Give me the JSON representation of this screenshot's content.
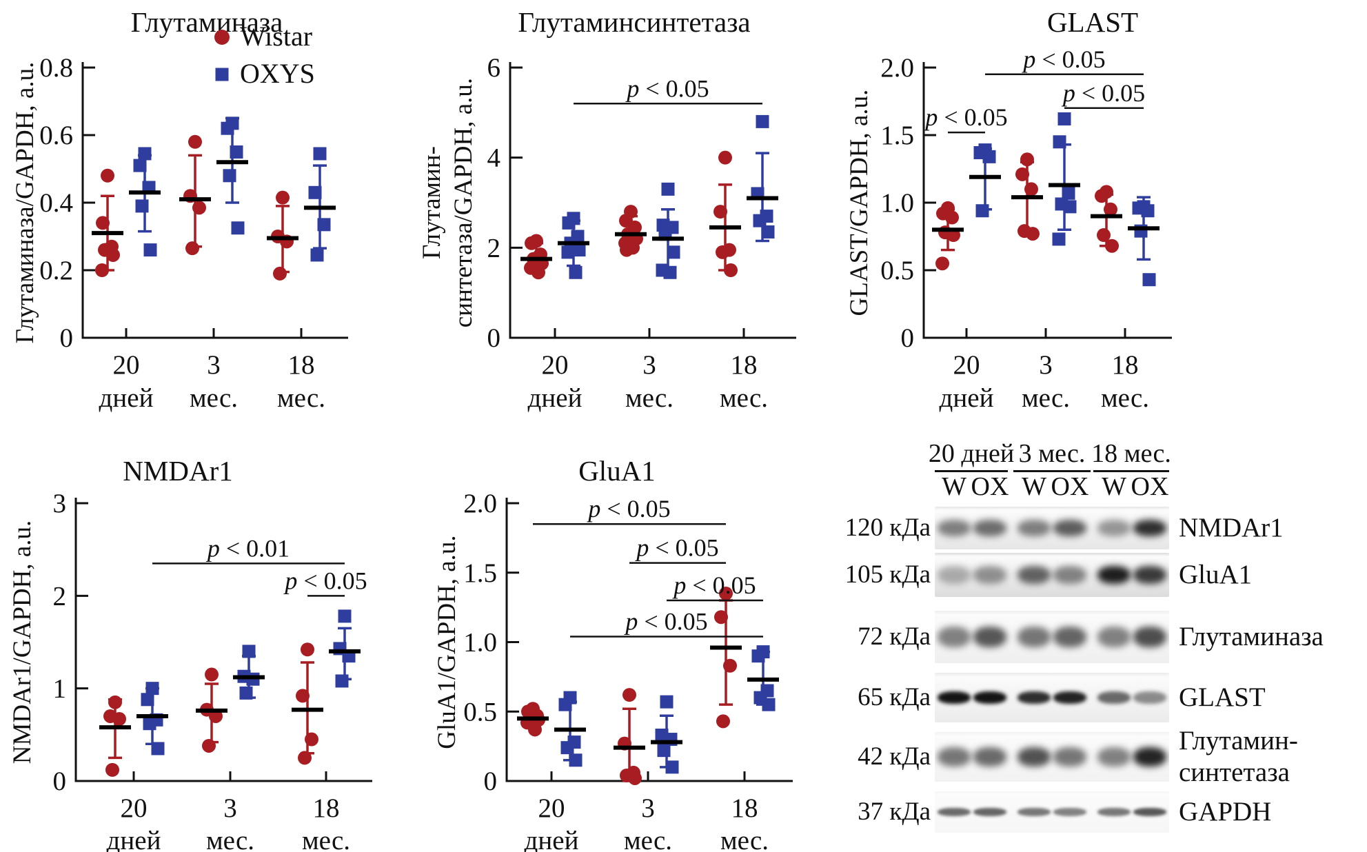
{
  "colors": {
    "wistar": "#A81D22",
    "oxys": "#2F3E9E",
    "axis": "#111111",
    "mean_bar": "#000000"
  },
  "legend": {
    "items": [
      {
        "label": "Wistar",
        "marker": "circle",
        "color_key": "wistar"
      },
      {
        "label": "OXYS",
        "marker": "square",
        "color_key": "oxys"
      }
    ]
  },
  "group_labels": [
    [
      "20",
      "дней"
    ],
    [
      "3",
      "мес."
    ],
    [
      "18",
      "мес."
    ]
  ],
  "chart_data": [
    {
      "id": "glutaminase",
      "type": "scatter",
      "title": "Глутаминаза",
      "ylabel_lines": [
        "Глутаминаза/GAPDH, a.u."
      ],
      "ylim": [
        0,
        0.8
      ],
      "yticks": [
        "0",
        "0.2",
        "0.4",
        "0.6",
        "0.8"
      ],
      "categories": [
        "20 дней",
        "3 мес.",
        "18 мес."
      ],
      "legend_inside": true,
      "series": [
        {
          "name": "Wistar",
          "marker": "circle",
          "data": [
            {
              "points": [
                0.48,
                0.34,
                0.27,
                0.26,
                0.245,
                0.2
              ],
              "mean": 0.31,
              "lo": 0.2,
              "hi": 0.42
            },
            {
              "points": [
                0.58,
                0.42,
                0.385,
                0.265
              ],
              "mean": 0.41,
              "lo": 0.27,
              "hi": 0.54
            },
            {
              "points": [
                0.415,
                0.3,
                0.285,
                0.19
              ],
              "mean": 0.295,
              "lo": 0.195,
              "hi": 0.39
            }
          ]
        },
        {
          "name": "OXYS",
          "marker": "square",
          "data": [
            {
              "points": [
                0.545,
                0.51,
                0.445,
                0.39,
                0.26
              ],
              "mean": 0.43,
              "lo": 0.315,
              "hi": 0.54
            },
            {
              "points": [
                0.635,
                0.62,
                0.55,
                0.48,
                0.325
              ],
              "mean": 0.52,
              "lo": 0.4,
              "hi": 0.65
            },
            {
              "points": [
                0.545,
                0.43,
                0.335,
                0.245
              ],
              "mean": 0.385,
              "lo": 0.265,
              "hi": 0.51
            }
          ]
        }
      ],
      "brackets": []
    },
    {
      "id": "glutamine-synthetase",
      "type": "scatter",
      "title": "Глутаминсинтетаза",
      "ylabel_lines": [
        "Глутамин-",
        "синтетаза/GAPDH, a.u."
      ],
      "ylim": [
        0,
        6
      ],
      "yticks": [
        "0",
        "2",
        "4",
        "6"
      ],
      "categories": [
        "20 дней",
        "3 мес.",
        "18 мес."
      ],
      "legend_inside": false,
      "series": [
        {
          "name": "Wistar",
          "marker": "circle",
          "data": [
            {
              "points": [
                2.15,
                2.1,
                1.85,
                1.75,
                1.65,
                1.55,
                1.45
              ],
              "mean": 1.75,
              "lo": 1.5,
              "hi": 2.1
            },
            {
              "points": [
                2.8,
                2.6,
                2.45,
                2.3,
                2.2,
                2.1,
                2.0,
                1.95
              ],
              "mean": 2.3,
              "lo": 1.95,
              "hi": 2.7
            },
            {
              "points": [
                4.0,
                2.8,
                1.95,
                1.9,
                1.5
              ],
              "mean": 2.45,
              "lo": 1.5,
              "hi": 3.4
            }
          ]
        },
        {
          "name": "OXYS",
          "marker": "square",
          "data": [
            {
              "points": [
                2.65,
                2.55,
                2.25,
                2.1,
                1.95,
                1.9,
                1.45
              ],
              "mean": 2.1,
              "lo": 1.6,
              "hi": 2.6
            },
            {
              "points": [
                3.3,
                2.5,
                2.45,
                2.3,
                1.9,
                1.5,
                1.45
              ],
              "mean": 2.2,
              "lo": 1.5,
              "hi": 2.85
            },
            {
              "points": [
                4.8,
                3.2,
                2.7,
                2.6,
                2.35
              ],
              "mean": 3.1,
              "lo": 2.15,
              "hi": 4.1
            }
          ]
        }
      ],
      "brackets": [
        {
          "label": "p < 0.05",
          "from": [
            1,
            0
          ],
          "to": [
            1,
            2
          ],
          "y": 5.2
        }
      ]
    },
    {
      "id": "glast",
      "type": "scatter",
      "title": "GLAST",
      "ylabel_lines": [
        "GLAST/GAPDH, a.u."
      ],
      "ylim": [
        0,
        2
      ],
      "yticks": [
        "0",
        "0.5",
        "1.0",
        "1.5",
        "2.0"
      ],
      "categories": [
        "20 дней",
        "3 мес.",
        "18 мес."
      ],
      "legend_inside": false,
      "series": [
        {
          "name": "Wistar",
          "marker": "circle",
          "data": [
            {
              "points": [
                0.96,
                0.92,
                0.89,
                0.78,
                0.76,
                0.55
              ],
              "mean": 0.8,
              "lo": 0.65,
              "hi": 0.95
            },
            {
              "points": [
                1.32,
                1.21,
                1.1,
                0.79,
                0.77
              ],
              "mean": 1.04,
              "lo": 0.77,
              "hi": 1.3
            },
            {
              "points": [
                1.08,
                1.05,
                0.95,
                0.76,
                0.68
              ],
              "mean": 0.9,
              "lo": 0.68,
              "hi": 1.06
            }
          ]
        },
        {
          "name": "OXYS",
          "marker": "square",
          "data": [
            {
              "points": [
                1.39,
                1.37,
                1.34,
                0.94
              ],
              "mean": 1.19,
              "lo": 0.95,
              "hi": 1.4
            },
            {
              "points": [
                1.62,
                1.45,
                1.07,
                0.99,
                0.97,
                0.73
              ],
              "mean": 1.13,
              "lo": 0.8,
              "hi": 1.43
            },
            {
              "points": [
                0.97,
                0.96,
                0.94,
                0.79,
                0.43
              ],
              "mean": 0.81,
              "lo": 0.58,
              "hi": 1.04
            }
          ]
        }
      ],
      "brackets": [
        {
          "label": "p < 0.05",
          "from": [
            1,
            0
          ],
          "to": [
            1,
            2
          ],
          "y": 1.95
        },
        {
          "label": "p < 0.05",
          "from": [
            1,
            1
          ],
          "to": [
            1,
            2
          ],
          "y": 1.7
        },
        {
          "label": "p < 0.05",
          "from": [
            0,
            0
          ],
          "to": [
            1,
            0
          ],
          "y": 1.52
        }
      ]
    },
    {
      "id": "nmdar1",
      "type": "scatter",
      "title": "NMDAr1",
      "ylabel_lines": [
        "NMDAr1/GAPDH, a.u."
      ],
      "ylim": [
        0,
        3
      ],
      "yticks": [
        "0",
        "1",
        "2",
        "3"
      ],
      "categories": [
        "20 дней",
        "3 мес.",
        "18 мес."
      ],
      "legend_inside": false,
      "series": [
        {
          "name": "Wistar",
          "marker": "circle",
          "data": [
            {
              "points": [
                0.85,
                0.7,
                0.67,
                0.12
              ],
              "mean": 0.58,
              "lo": 0.25,
              "hi": 0.88
            },
            {
              "points": [
                1.15,
                0.77,
                0.7,
                0.38
              ],
              "mean": 0.76,
              "lo": 0.42,
              "hi": 1.05
            },
            {
              "points": [
                1.42,
                0.92,
                0.45,
                0.25
              ],
              "mean": 0.77,
              "lo": 0.3,
              "hi": 1.28
            }
          ]
        },
        {
          "name": "OXYS",
          "marker": "square",
          "data": [
            {
              "points": [
                1.0,
                0.88,
                0.66,
                0.62,
                0.35
              ],
              "mean": 0.7,
              "lo": 0.4,
              "hi": 1.0
            },
            {
              "points": [
                1.4,
                1.13,
                1.1,
                0.95
              ],
              "mean": 1.12,
              "lo": 0.9,
              "hi": 1.35
            },
            {
              "points": [
                1.78,
                1.43,
                1.35,
                1.08
              ],
              "mean": 1.4,
              "lo": 1.1,
              "hi": 1.65
            }
          ]
        }
      ],
      "brackets": [
        {
          "label": "p < 0.01",
          "from": [
            1,
            0
          ],
          "to": [
            1,
            2
          ],
          "y": 2.35
        },
        {
          "label": "p < 0.05",
          "from": [
            0,
            2
          ],
          "to": [
            1,
            2
          ],
          "y": 2.0
        }
      ]
    },
    {
      "id": "glua1",
      "type": "scatter",
      "title": "GluA1",
      "ylabel_lines": [
        "GluA1/GAPDH, a.u."
      ],
      "ylim": [
        0,
        2
      ],
      "yticks": [
        "0",
        "0.5",
        "1.0",
        "1.5",
        "2.0"
      ],
      "categories": [
        "20 дней",
        "3 мес.",
        "18 мес."
      ],
      "legend_inside": false,
      "series": [
        {
          "name": "Wistar",
          "marker": "circle",
          "data": [
            {
              "points": [
                0.52,
                0.5,
                0.47,
                0.45,
                0.44,
                0.42,
                0.37
              ],
              "mean": 0.45,
              "lo": 0.4,
              "hi": 0.5
            },
            {
              "points": [
                0.62,
                0.27,
                0.06,
                0.04,
                0.02
              ],
              "mean": 0.24,
              "lo": 0.0,
              "hi": 0.52
            },
            {
              "points": [
                1.35,
                1.18,
                0.83,
                0.43
              ],
              "mean": 0.96,
              "lo": 0.55,
              "hi": 1.3
            }
          ]
        },
        {
          "name": "OXYS",
          "marker": "square",
          "data": [
            {
              "points": [
                0.6,
                0.55,
                0.28,
                0.24,
                0.15
              ],
              "mean": 0.37,
              "lo": 0.15,
              "hi": 0.57
            },
            {
              "points": [
                0.57,
                0.33,
                0.3,
                0.22,
                0.1
              ],
              "mean": 0.28,
              "lo": 0.1,
              "hi": 0.47
            },
            {
              "points": [
                0.93,
                0.9,
                0.65,
                0.6,
                0.55
              ],
              "mean": 0.73,
              "lo": 0.55,
              "hi": 0.93
            }
          ]
        }
      ],
      "brackets": [
        {
          "label": "p < 0.05",
          "from": [
            0,
            0
          ],
          "to": [
            0,
            2
          ],
          "y": 1.85
        },
        {
          "label": "p < 0.05",
          "from": [
            0,
            1
          ],
          "to": [
            0,
            2
          ],
          "y": 1.57
        },
        {
          "label": "p < 0.05",
          "from": [
            1,
            1
          ],
          "to": [
            1,
            2
          ],
          "y": 1.3
        },
        {
          "label": "p < 0.05",
          "from": [
            1,
            0
          ],
          "to": [
            1,
            2
          ],
          "y": 1.04
        }
      ]
    }
  ],
  "western_blot": {
    "age_groups": [
      "20 дней",
      "3 мес.",
      "18 мес."
    ],
    "lane_labels": [
      "W",
      "OX",
      "W",
      "OX",
      "W",
      "OX"
    ],
    "rows": [
      {
        "weight": "120 кДа",
        "protein_lines": [
          "NMDAr1"
        ],
        "band_height": 24,
        "blur": 5,
        "bg": "#e7e6e6",
        "intensities": [
          0.5,
          0.58,
          0.5,
          0.65,
          0.4,
          0.85
        ]
      },
      {
        "weight": "105 кДа",
        "protein_lines": [
          "GluA1"
        ],
        "band_height": 26,
        "blur": 5,
        "bg": "#dcdcdd",
        "intensities": [
          0.3,
          0.42,
          0.62,
          0.48,
          0.92,
          0.8
        ]
      },
      {
        "weight": "72 кДа",
        "protein_lines": [
          "Глутаминаза"
        ],
        "band_height": 30,
        "blur": 5,
        "bg": "#f0efef",
        "intensities": [
          0.5,
          0.68,
          0.55,
          0.62,
          0.5,
          0.72
        ]
      },
      {
        "weight": "65 кДа",
        "protein_lines": [
          "GLAST"
        ],
        "band_height": 18,
        "blur": 3,
        "bg": "#ecebeb",
        "intensities": [
          0.97,
          0.97,
          0.85,
          0.9,
          0.6,
          0.45
        ]
      },
      {
        "weight": "42 кДа",
        "protein_lines": [
          "Глутамин-",
          "синтетаза"
        ],
        "band_height": 28,
        "blur": 5,
        "bg": "#f3f2f2",
        "intensities": [
          0.55,
          0.6,
          0.7,
          0.55,
          0.5,
          0.9
        ]
      },
      {
        "weight": "37 кДа",
        "protein_lines": [
          "GAPDH"
        ],
        "band_height": 12,
        "blur": 2,
        "bg": "#f7f6f6",
        "intensities": [
          0.6,
          0.62,
          0.55,
          0.5,
          0.55,
          0.68
        ]
      }
    ]
  }
}
